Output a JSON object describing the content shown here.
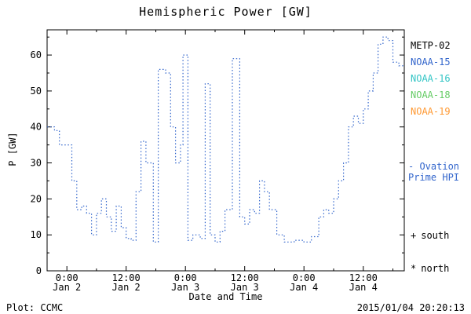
{
  "title": "Hemispheric Power [GW]",
  "footer": {
    "credit": "Plot: CCMC",
    "timestamp": "2015/01/04 20:20:13"
  },
  "legend": {
    "satellites": [
      {
        "label": "METP-02",
        "color": "#000000"
      },
      {
        "label": "NOAA-15",
        "color": "#3366cc"
      },
      {
        "label": "NOAA-16",
        "color": "#33c5c5"
      },
      {
        "label": "NOAA-18",
        "color": "#66cc66"
      },
      {
        "label": "NOAA-19",
        "color": "#ff9933"
      }
    ],
    "ovation": {
      "line1": "- Ovation",
      "line2": "Prime HPI",
      "color": "#3366cc"
    },
    "markers": [
      {
        "symbol": "+",
        "label": "south"
      },
      {
        "symbol": "*",
        "label": "north"
      }
    ]
  },
  "chart_data": {
    "type": "line",
    "step": true,
    "line_style": "dotted",
    "line_color": "#3366cc",
    "title": "Hemispheric Power [GW]",
    "xlabel": "Date and Time",
    "ylabel": "P [GW]",
    "ylim": [
      0,
      67
    ],
    "y_ticks": [
      0,
      10,
      20,
      30,
      40,
      50,
      60
    ],
    "y_minor_step": 5,
    "xlim_hours": [
      -4,
      68.3
    ],
    "x_minor_step": 6,
    "x_ticks": [
      {
        "hour": 0,
        "time": "0:00",
        "date": "Jan 2"
      },
      {
        "hour": 12,
        "time": "12:00",
        "date": "Jan 2"
      },
      {
        "hour": 24,
        "time": "0:00",
        "date": "Jan 3"
      },
      {
        "hour": 36,
        "time": "12:00",
        "date": "Jan 3"
      },
      {
        "hour": 48,
        "time": "0:00",
        "date": "Jan 4"
      },
      {
        "hour": 60,
        "time": "12:00",
        "date": "Jan 4"
      }
    ],
    "x_hours": [
      -4,
      -2.5,
      -1.5,
      0,
      1,
      2,
      3,
      4,
      5,
      6,
      7,
      8,
      9,
      10,
      11,
      12,
      13,
      14,
      15,
      16,
      17.5,
      18.5,
      20,
      21,
      22,
      23,
      23.5,
      24.5,
      25.5,
      27,
      28,
      29,
      30,
      31,
      32,
      33.5,
      35,
      36,
      37,
      38,
      39,
      40,
      41,
      42.5,
      44,
      46,
      48,
      49.5,
      51,
      52,
      53,
      54,
      55,
      56,
      57,
      58,
      59,
      60,
      61,
      62,
      63,
      64,
      65,
      66,
      67.2
    ],
    "values": [
      40,
      39,
      35,
      35,
      25,
      17,
      18,
      16,
      10,
      16,
      20,
      15,
      11,
      18,
      12,
      9,
      8.5,
      22,
      36,
      30,
      8,
      56,
      55,
      40,
      30,
      35,
      60,
      8.5,
      10,
      9,
      52,
      10,
      8,
      11,
      17,
      59,
      15,
      13,
      17,
      16,
      25,
      22,
      17,
      10,
      8,
      8.5,
      8,
      9.5,
      15,
      17,
      16,
      20,
      25,
      30,
      40,
      43,
      41,
      45,
      50,
      55,
      63,
      65,
      64,
      58,
      57
    ]
  }
}
